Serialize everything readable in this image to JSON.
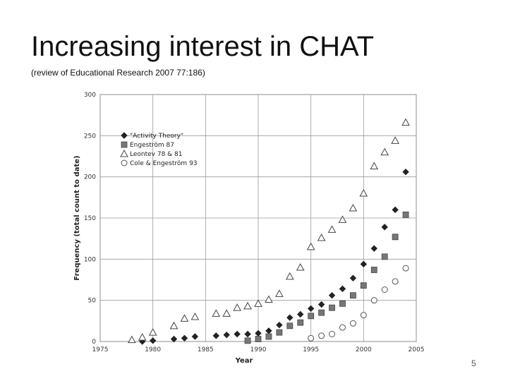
{
  "slide": {
    "title": "Increasing interest in CHAT",
    "subtitle": "(review of Educational Research 2007 77:186)",
    "page_number": "5"
  },
  "chart_data": {
    "type": "scatter",
    "title": "",
    "xlabel": "Year",
    "ylabel": "Frequency (total count to date)",
    "xlim": [
      1975,
      2005
    ],
    "ylim": [
      0,
      300
    ],
    "xticks": [
      1975,
      1980,
      1985,
      1990,
      1995,
      2000,
      2005
    ],
    "yticks": [
      0,
      50,
      100,
      150,
      200,
      250,
      300
    ],
    "grid": "major lines every 5 units on both axes",
    "legend_position": "top-left",
    "series": [
      {
        "name": "\"Activity Theory\"",
        "marker": "diamond",
        "color": "#222222",
        "points": [
          [
            1979,
            0
          ],
          [
            1980,
            1
          ],
          [
            1982,
            3
          ],
          [
            1983,
            4
          ],
          [
            1984,
            6
          ],
          [
            1986,
            7
          ],
          [
            1987,
            8
          ],
          [
            1988,
            9
          ],
          [
            1989,
            9
          ],
          [
            1990,
            10
          ],
          [
            1991,
            13
          ],
          [
            1992,
            20
          ],
          [
            1993,
            29
          ],
          [
            1994,
            33
          ],
          [
            1995,
            40
          ],
          [
            1996,
            45
          ],
          [
            1997,
            56
          ],
          [
            1998,
            64
          ],
          [
            1999,
            77
          ],
          [
            2000,
            94
          ],
          [
            2001,
            113
          ],
          [
            2002,
            139
          ],
          [
            2003,
            160
          ],
          [
            2004,
            206
          ]
        ]
      },
      {
        "name": "Engeström 87",
        "marker": "square",
        "color": "#777777",
        "points": [
          [
            1989,
            1
          ],
          [
            1990,
            3
          ],
          [
            1991,
            6
          ],
          [
            1992,
            11
          ],
          [
            1993,
            19
          ],
          [
            1994,
            23
          ],
          [
            1995,
            31
          ],
          [
            1996,
            35
          ],
          [
            1997,
            41
          ],
          [
            1998,
            46
          ],
          [
            1999,
            56
          ],
          [
            2000,
            68
          ],
          [
            2001,
            87
          ],
          [
            2002,
            103
          ],
          [
            2003,
            127
          ],
          [
            2004,
            154
          ]
        ]
      },
      {
        "name": "Leontev 78 & 81",
        "marker": "triangle",
        "color": "#444444",
        "points": [
          [
            1978,
            2
          ],
          [
            1979,
            5
          ],
          [
            1980,
            11
          ],
          [
            1982,
            19
          ],
          [
            1983,
            28
          ],
          [
            1984,
            30
          ],
          [
            1986,
            34
          ],
          [
            1987,
            34
          ],
          [
            1988,
            41
          ],
          [
            1989,
            43
          ],
          [
            1990,
            46
          ],
          [
            1991,
            51
          ],
          [
            1992,
            58
          ],
          [
            1993,
            79
          ],
          [
            1994,
            90
          ],
          [
            1995,
            115
          ],
          [
            1996,
            126
          ],
          [
            1997,
            136
          ],
          [
            1998,
            148
          ],
          [
            1999,
            162
          ],
          [
            2000,
            180
          ],
          [
            2001,
            213
          ],
          [
            2002,
            230
          ],
          [
            2003,
            244
          ],
          [
            2004,
            266
          ]
        ]
      },
      {
        "name": "Cole & Engeström 93",
        "marker": "circle",
        "color": "#555555",
        "points": [
          [
            1995,
            4
          ],
          [
            1996,
            7
          ],
          [
            1997,
            9
          ],
          [
            1998,
            17
          ],
          [
            1999,
            22
          ],
          [
            2000,
            32
          ],
          [
            2001,
            50
          ],
          [
            2002,
            63
          ],
          [
            2003,
            73
          ],
          [
            2004,
            89
          ]
        ]
      }
    ]
  }
}
